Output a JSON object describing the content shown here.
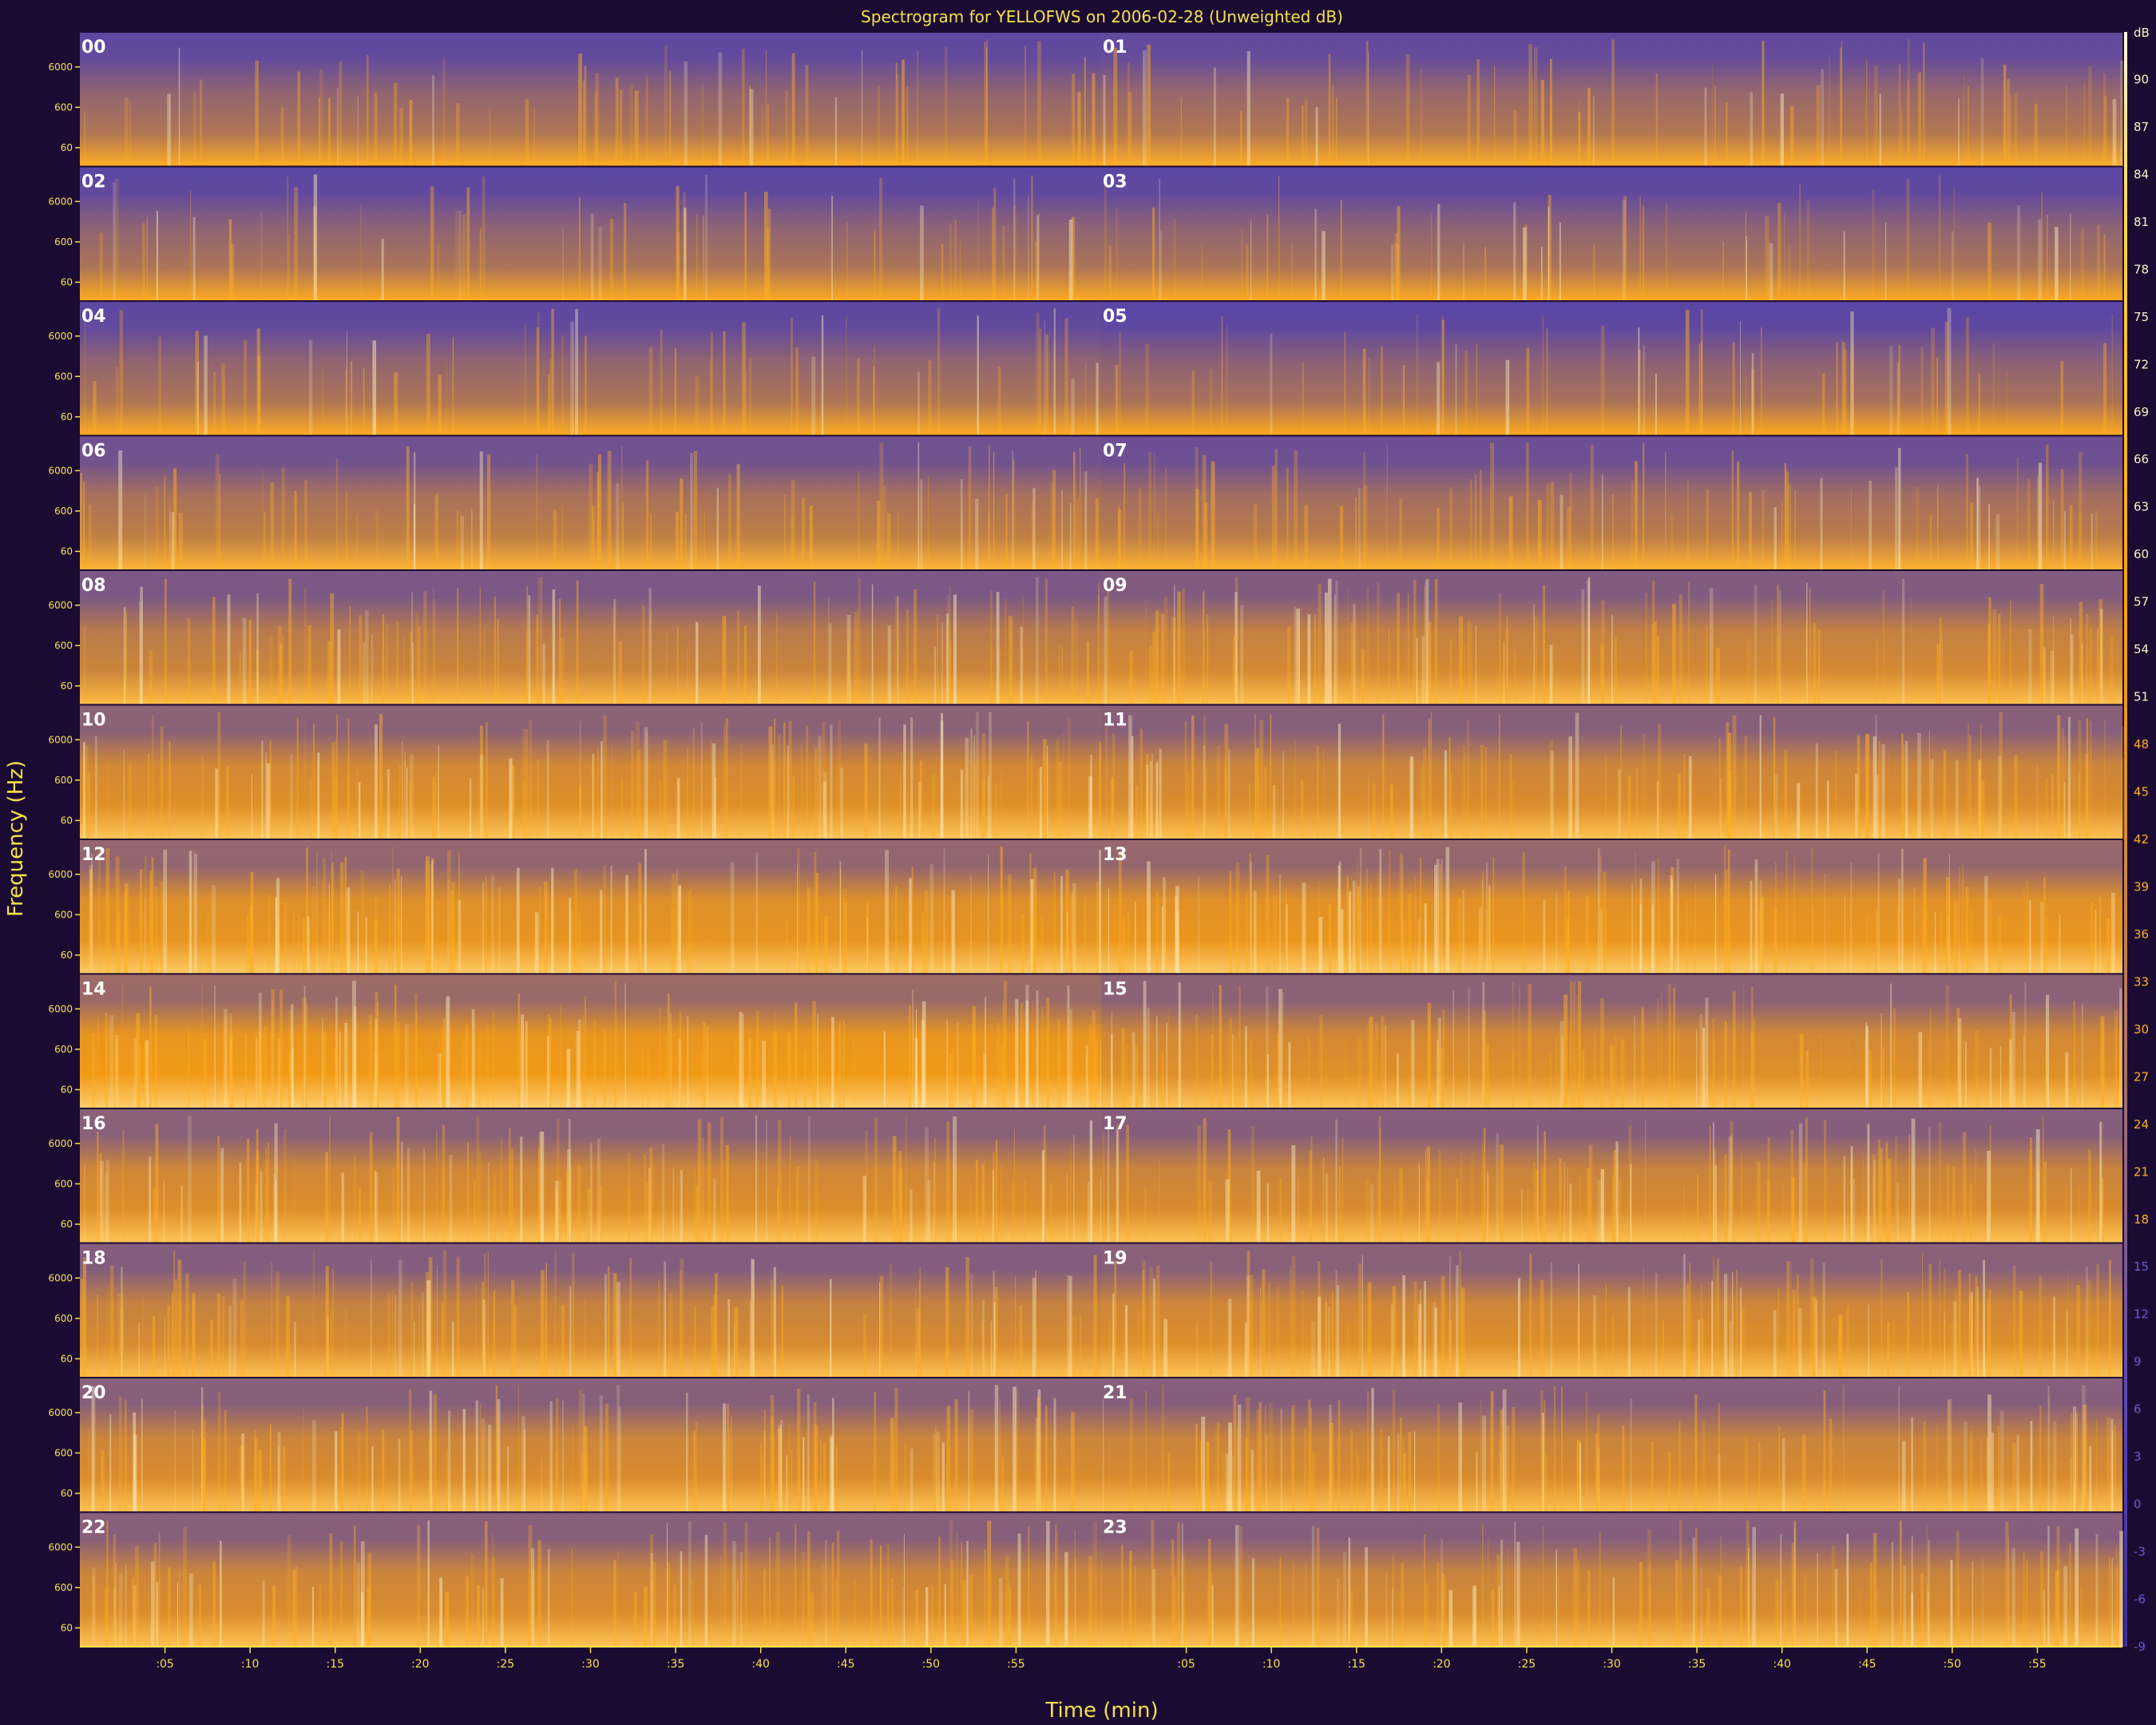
{
  "chart_data": {
    "type": "heatmap",
    "title": "Spectrogram for YELLOFWS on 2006-02-28 (Unweighted dB)",
    "xlabel": "Time (min)",
    "ylabel": "Frequency (Hz)",
    "x_tick_labels": [
      ":05",
      ":10",
      ":15",
      ":20",
      ":25",
      ":30",
      ":35",
      ":40",
      ":45",
      ":50",
      ":55"
    ],
    "y_tick_labels": [
      "6000",
      "600",
      "60"
    ],
    "y_scale": "log",
    "rows": [
      {
        "left_hour": "00",
        "right_hour": "01"
      },
      {
        "left_hour": "02",
        "right_hour": "03"
      },
      {
        "left_hour": "04",
        "right_hour": "05"
      },
      {
        "left_hour": "06",
        "right_hour": "07"
      },
      {
        "left_hour": "08",
        "right_hour": "09"
      },
      {
        "left_hour": "10",
        "right_hour": "11"
      },
      {
        "left_hour": "12",
        "right_hour": "13"
      },
      {
        "left_hour": "14",
        "right_hour": "15"
      },
      {
        "left_hour": "16",
        "right_hour": "17"
      },
      {
        "left_hour": "18",
        "right_hour": "19"
      },
      {
        "left_hour": "20",
        "right_hour": "21"
      },
      {
        "left_hour": "22",
        "right_hour": "23"
      }
    ],
    "colorbar": {
      "label": "dB",
      "ticks": [
        "90",
        "87",
        "84",
        "81",
        "78",
        "75",
        "72",
        "69",
        "66",
        "63",
        "60",
        "57",
        "54",
        "51",
        "48",
        "45",
        "42",
        "39",
        "36",
        "33",
        "30",
        "27",
        "24",
        "21",
        "18",
        "15",
        "12",
        "9",
        "6",
        "3",
        "0",
        "-3",
        "-6",
        "-9"
      ],
      "range": [
        -9,
        93
      ],
      "colors": {
        "low": "#4a3cb4",
        "mid": "#ffa20a",
        "high": "#fff4c8"
      }
    },
    "hourly_intensity": [
      0.18,
      0.22,
      0.16,
      0.16,
      0.18,
      0.14,
      0.34,
      0.3,
      0.45,
      0.52,
      0.62,
      0.58,
      0.7,
      0.72,
      0.78,
      0.62,
      0.6,
      0.56,
      0.54,
      0.6,
      0.58,
      0.56,
      0.58,
      0.56
    ]
  }
}
